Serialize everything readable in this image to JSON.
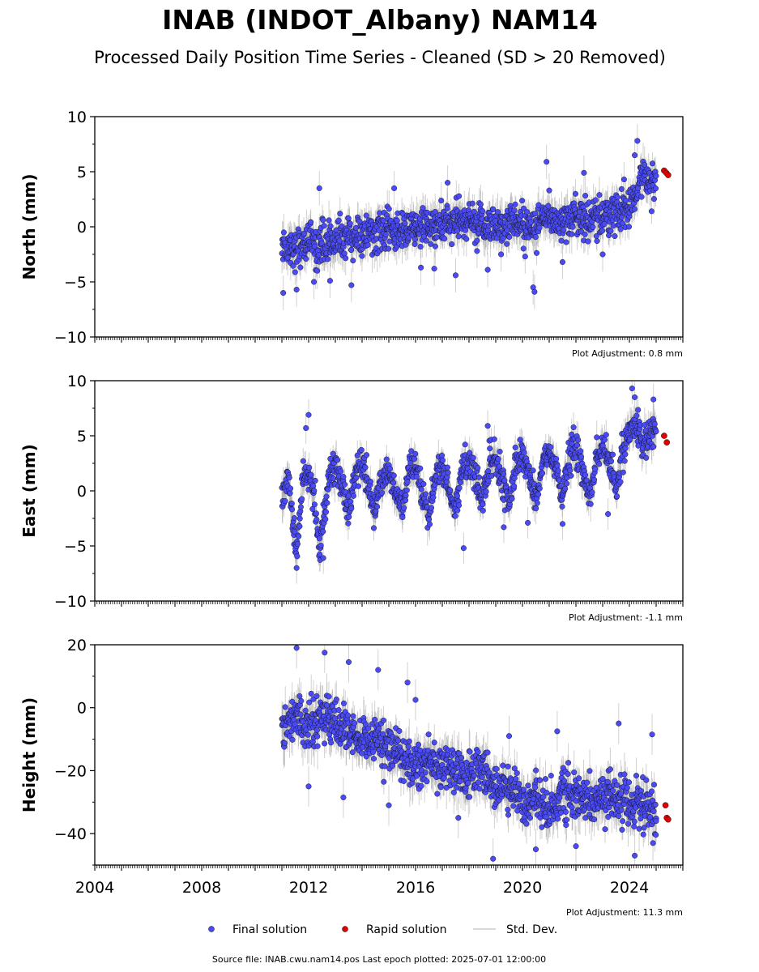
{
  "title": "INAB (INDOT_Albany) NAM14",
  "subtitle": "Processed Daily Position Time Series - Cleaned (SD > 20 Removed)",
  "source_text": "Source file: INAB.cwu.nam14.pos  Last epoch plotted: 2025-07-01 12:00:00",
  "legend": [
    {
      "label": "Final solution",
      "color": "#4b4bf5",
      "marker": "dot"
    },
    {
      "label": "Rapid solution",
      "color": "#e00000",
      "marker": "dot"
    },
    {
      "label": "Std. Dev.",
      "color": "#cccccc",
      "marker": "line"
    }
  ],
  "chart_data": [
    {
      "type": "scatter",
      "ylabel": "North (mm)",
      "xlim": [
        2004,
        2026
      ],
      "ylim": [
        -10,
        10
      ],
      "yticks": [
        -10,
        -5,
        0,
        5,
        10
      ],
      "ytick_labels": [
        "−10",
        "−5",
        "0",
        "5",
        "10"
      ],
      "adjustment": "Plot Adjustment: 0.8 mm",
      "final_series": {
        "name": "Final solution",
        "x": [
          2011.0,
          2011.25,
          2011.5,
          2011.75,
          2012.0,
          2012.25,
          2012.5,
          2012.75,
          2013.0,
          2013.5,
          2014.0,
          2014.5,
          2015.0,
          2015.5,
          2016.0,
          2016.5,
          2017.0,
          2017.5,
          2018.0,
          2018.5,
          2019.0,
          2019.5,
          2020.0,
          2020.5,
          2021.0,
          2021.5,
          2022.0,
          2022.5,
          2023.0,
          2023.5,
          2024.0,
          2024.25,
          2024.5,
          2024.75,
          2025.0
        ],
        "y": [
          -1.5,
          -1.8,
          -2.0,
          -1.6,
          -1.2,
          -2.0,
          -1.5,
          -1.3,
          -1.2,
          -1.0,
          -0.8,
          -0.6,
          -0.5,
          -0.3,
          -0.2,
          0.0,
          0.2,
          0.3,
          0.4,
          0.3,
          0.2,
          0.3,
          0.5,
          0.0,
          0.8,
          0.7,
          0.9,
          0.8,
          1.0,
          1.2,
          1.5,
          2.5,
          5.0,
          4.5,
          4.0
        ],
        "spread": 1.6,
        "std": 1.2
      },
      "outliers": [
        [
          2011.05,
          -6.0
        ],
        [
          2011.55,
          -5.7
        ],
        [
          2012.2,
          -5.0
        ],
        [
          2012.4,
          3.5
        ],
        [
          2012.8,
          -4.9
        ],
        [
          2013.6,
          -5.3
        ],
        [
          2015.2,
          3.5
        ],
        [
          2016.2,
          -3.7
        ],
        [
          2016.7,
          -3.8
        ],
        [
          2017.2,
          4.0
        ],
        [
          2017.5,
          -4.4
        ],
        [
          2018.3,
          -2.2
        ],
        [
          2018.7,
          -3.9
        ],
        [
          2019.2,
          -2.5
        ],
        [
          2020.1,
          -2.7
        ],
        [
          2020.4,
          -5.5
        ],
        [
          2020.45,
          -5.9
        ],
        [
          2020.9,
          5.9
        ],
        [
          2021.0,
          3.3
        ],
        [
          2021.5,
          -3.2
        ],
        [
          2022.3,
          4.9
        ],
        [
          2023.0,
          -2.5
        ],
        [
          2023.8,
          4.3
        ],
        [
          2024.3,
          7.8
        ],
        [
          2024.2,
          6.5
        ]
      ],
      "rapid": {
        "name": "Rapid solution",
        "x": [
          2025.3,
          2025.38,
          2025.45
        ],
        "y": [
          5.1,
          4.9,
          4.7
        ]
      }
    },
    {
      "type": "scatter",
      "ylabel": "East (mm)",
      "xlim": [
        2004,
        2026
      ],
      "ylim": [
        -10,
        10
      ],
      "yticks": [
        -10,
        -5,
        0,
        5,
        10
      ],
      "ytick_labels": [
        "−10",
        "−5",
        "0",
        "5",
        "10"
      ],
      "adjustment": "Plot Adjustment: -1.1 mm",
      "final_series": {
        "name": "Final solution",
        "x": [
          2011.0,
          2011.25,
          2011.4,
          2011.55,
          2011.75,
          2012.0,
          2012.25,
          2012.4,
          2012.55,
          2012.75,
          2013.0,
          2013.25,
          2013.5,
          2013.75,
          2014.0,
          2014.25,
          2014.5,
          2014.75,
          2015.0,
          2015.25,
          2015.5,
          2015.75,
          2016.0,
          2016.25,
          2016.5,
          2016.75,
          2017.0,
          2017.25,
          2017.5,
          2017.75,
          2018.0,
          2018.25,
          2018.5,
          2018.75,
          2019.0,
          2019.25,
          2019.5,
          2019.75,
          2020.0,
          2020.25,
          2020.5,
          2020.75,
          2021.0,
          2021.25,
          2021.5,
          2021.75,
          2022.0,
          2022.25,
          2022.5,
          2022.75,
          2023.0,
          2023.25,
          2023.5,
          2023.75,
          2024.0,
          2024.25,
          2024.5,
          2024.75,
          2025.0
        ],
        "y": [
          -0.5,
          1.5,
          -3.0,
          -5.5,
          0.0,
          2.0,
          -1.5,
          -5.0,
          -3.0,
          1.5,
          2.5,
          0.5,
          -2.0,
          1.5,
          2.5,
          0.0,
          -1.5,
          1.0,
          2.0,
          0.0,
          -1.5,
          1.5,
          2.0,
          -0.5,
          -2.5,
          1.5,
          2.5,
          0.0,
          -2.0,
          2.0,
          3.0,
          1.0,
          -1.0,
          2.5,
          3.0,
          1.0,
          -1.5,
          2.5,
          3.5,
          1.5,
          -1.0,
          2.5,
          3.5,
          2.0,
          -0.5,
          3.0,
          4.0,
          2.0,
          -1.0,
          3.0,
          4.0,
          2.5,
          0.0,
          3.5,
          5.0,
          6.0,
          4.5,
          5.5,
          5.5
        ],
        "spread": 1.3,
        "std": 1.1
      },
      "outliers": [
        [
          2011.9,
          5.7
        ],
        [
          2012.0,
          6.9
        ],
        [
          2011.55,
          -7.0
        ],
        [
          2012.55,
          -6.1
        ],
        [
          2017.8,
          -5.2
        ],
        [
          2018.7,
          5.9
        ],
        [
          2019.3,
          -3.3
        ],
        [
          2020.2,
          -2.9
        ],
        [
          2021.5,
          -3.0
        ],
        [
          2023.2,
          -2.1
        ],
        [
          2024.1,
          9.3
        ],
        [
          2024.2,
          8.5
        ],
        [
          2024.9,
          8.3
        ]
      ],
      "rapid": {
        "name": "Rapid solution",
        "x": [
          2025.3,
          2025.4
        ],
        "y": [
          5.0,
          4.4
        ]
      }
    },
    {
      "type": "scatter",
      "ylabel": "Height (mm)",
      "xlim": [
        2004,
        2026
      ],
      "ylim": [
        -50,
        20
      ],
      "yticks": [
        -40,
        -20,
        0,
        20
      ],
      "ytick_labels": [
        "−40",
        "−20",
        "0",
        "20"
      ],
      "xticks": [
        2004,
        2008,
        2012,
        2016,
        2020,
        2024
      ],
      "xtick_labels": [
        "2004",
        "2008",
        "2012",
        "2016",
        "2020",
        "2024"
      ],
      "adjustment": "Plot Adjustment: 11.3 mm",
      "final_series": {
        "name": "Final solution",
        "x": [
          2011.0,
          2011.5,
          2012.0,
          2012.5,
          2013.0,
          2013.5,
          2014.0,
          2014.5,
          2015.0,
          2015.5,
          2016.0,
          2016.5,
          2017.0,
          2017.5,
          2018.0,
          2018.5,
          2019.0,
          2019.5,
          2020.0,
          2020.5,
          2021.0,
          2021.5,
          2022.0,
          2022.5,
          2023.0,
          2023.5,
          2024.0,
          2024.5,
          2025.0
        ],
        "y": [
          -6,
          -3,
          -5,
          -2,
          -5,
          -8,
          -12,
          -10,
          -14,
          -15,
          -18,
          -17,
          -20,
          -19,
          -22,
          -20,
          -26,
          -24,
          -30,
          -28,
          -32,
          -27,
          -30,
          -28,
          -31,
          -27,
          -30,
          -31,
          -35
        ],
        "spread": 6.5,
        "std": 5.0
      },
      "outliers": [
        [
          2011.55,
          19.0
        ],
        [
          2012.6,
          17.5
        ],
        [
          2013.5,
          14.5
        ],
        [
          2014.6,
          12.0
        ],
        [
          2015.7,
          8.0
        ],
        [
          2016.0,
          2.5
        ],
        [
          2012.0,
          -25.0
        ],
        [
          2013.3,
          -28.5
        ],
        [
          2015.0,
          -31.0
        ],
        [
          2017.6,
          -35.0
        ],
        [
          2018.9,
          -48.0
        ],
        [
          2019.5,
          -9.0
        ],
        [
          2020.5,
          -45.0
        ],
        [
          2021.3,
          -7.5
        ],
        [
          2022.0,
          -44.0
        ],
        [
          2023.6,
          -5.0
        ],
        [
          2024.2,
          -47.0
        ],
        [
          2024.85,
          -8.5
        ],
        [
          2025.0,
          -36.0
        ]
      ],
      "rapid": {
        "name": "Rapid solution",
        "x": [
          2025.35,
          2025.4,
          2025.45
        ],
        "y": [
          -31.0,
          -35.0,
          -35.5
        ]
      }
    }
  ]
}
